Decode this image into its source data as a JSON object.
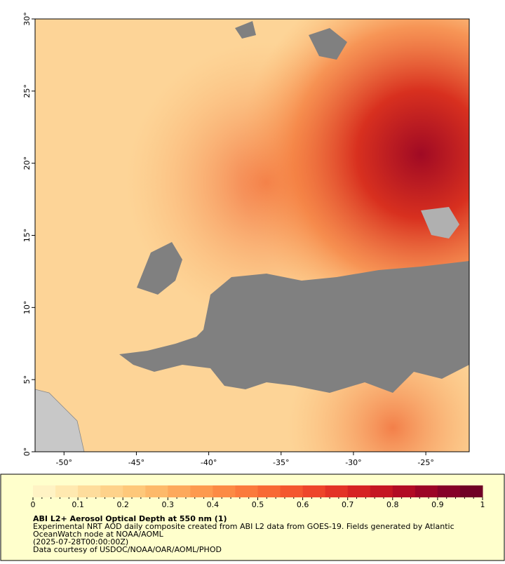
{
  "map": {
    "xlim": [
      -52,
      -22
    ],
    "ylim": [
      0,
      30
    ],
    "xticks": [
      {
        "value": -50,
        "label": "-50°"
      },
      {
        "value": -45,
        "label": "-45°"
      },
      {
        "value": -40,
        "label": "-40°"
      },
      {
        "value": -35,
        "label": "-35°"
      },
      {
        "value": -30,
        "label": "-30°"
      },
      {
        "value": -25,
        "label": "-25°"
      }
    ],
    "yticks": [
      {
        "value": 0,
        "label": "0°"
      },
      {
        "value": 5,
        "label": "5°"
      },
      {
        "value": 10,
        "label": "10°"
      },
      {
        "value": 15,
        "label": "15°"
      },
      {
        "value": 20,
        "label": "20°"
      },
      {
        "value": 25,
        "label": "25°"
      },
      {
        "value": 30,
        "label": "30°"
      }
    ]
  },
  "colorbar": {
    "lim": [
      0,
      1
    ],
    "ticks": [
      0,
      0.1,
      0.2,
      0.3,
      0.4,
      0.5,
      0.6,
      0.7,
      0.8,
      0.9,
      1
    ],
    "colors": [
      "#fff3c4",
      "#ffe9b0",
      "#fedd9c",
      "#fed28a",
      "#fec87a",
      "#fdb96a",
      "#fda95c",
      "#fd9a4f",
      "#fc8a44",
      "#fb7a3c",
      "#f86935",
      "#f4572f",
      "#ee452a",
      "#e33326",
      "#d62323",
      "#c51622",
      "#b20c24",
      "#9c0526",
      "#860228",
      "#700026"
    ]
  },
  "legend": {
    "title": "ABI L2+ Aerosol Optical Depth at 550 nm (1)",
    "lines": [
      "Experimental NRT AOD daily composite created from ABI L2 data from GOES-19. Fields generated by Atlantic",
      "OceanWatch node at NOAA/AOML",
      "(2025-07-28T00:00:00Z)",
      "Data courtesy of USDOC/NOAA/OAR/AOML/PHOD"
    ]
  }
}
